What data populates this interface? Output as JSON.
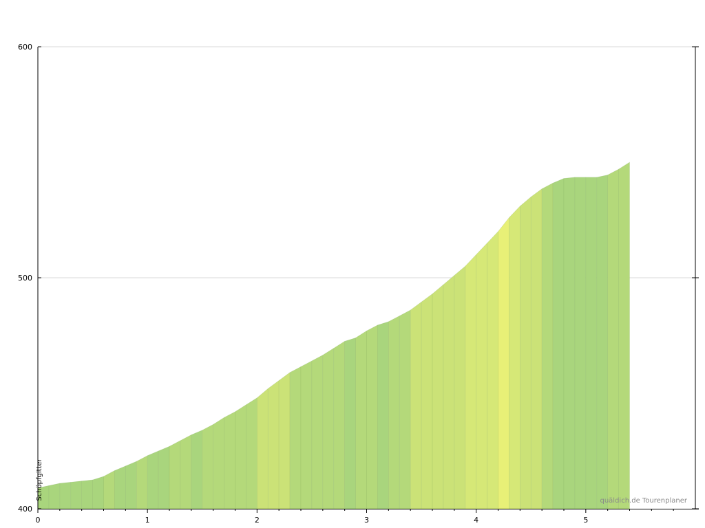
{
  "chart_data": {
    "type": "area",
    "title": "",
    "xlabel": "",
    "ylabel": "",
    "xlim": [
      0,
      6
    ],
    "ylim": [
      400,
      600
    ],
    "x_ticks": [
      0,
      1,
      2,
      3,
      4,
      5
    ],
    "y_ticks": [
      400,
      500,
      600
    ],
    "grid": "horizontal",
    "segment_km": 0.1,
    "elevation_m": [
      409,
      410,
      411,
      411.5,
      412,
      412.5,
      414,
      416.5,
      418.5,
      420.5,
      423,
      425,
      427,
      429.5,
      432,
      434,
      436.5,
      439.5,
      442,
      445,
      448,
      452,
      455.5,
      459,
      461.5,
      464,
      466.5,
      469.5,
      472.5,
      474,
      477,
      479.5,
      481,
      483.5,
      486,
      489.5,
      493,
      497,
      501,
      505,
      510,
      515,
      520,
      526,
      531,
      535,
      538.5,
      541,
      543,
      543.5,
      543.5,
      543.5,
      544.5,
      547,
      550
    ],
    "gradient_colors": [
      "#a9d57d",
      "#b4d97a",
      "#cbe277",
      "#d6e877",
      "#e8f077",
      "#f7f96f",
      "#ffff70"
    ],
    "annotations": [
      {
        "text": "Schöpfgitter",
        "x": 0
      }
    ]
  },
  "watermark": "quäldich.de Tourenplaner"
}
